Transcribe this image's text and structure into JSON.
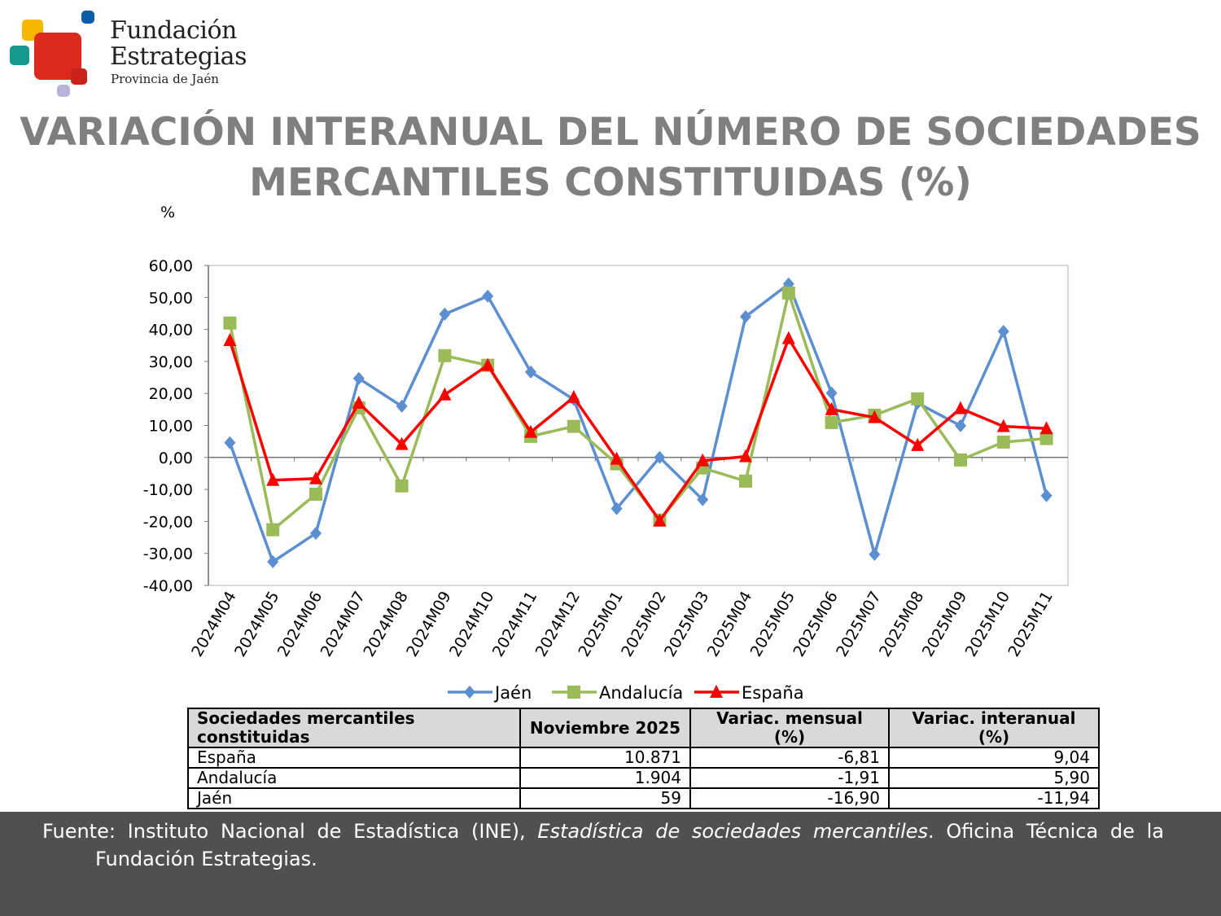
{
  "logo": {
    "line1": "Fundación",
    "line2": "Estrategias",
    "line3": "Provincia de Jaén"
  },
  "title_line1": "VARIACIÓN INTERANUAL DEL NÚMERO DE SOCIEDADES",
  "title_line2": "MERCANTILES CONSTITUIDAS (%)",
  "chart_data": {
    "type": "line",
    "ylabel": "%",
    "ylim": [
      -40,
      60
    ],
    "yticks": [
      "60,00",
      "50,00",
      "40,00",
      "30,00",
      "20,00",
      "10,00",
      "0,00",
      "-10,00",
      "-20,00",
      "-30,00",
      "-40,00"
    ],
    "categories": [
      "2024M04",
      "2024M05",
      "2024M06",
      "2024M07",
      "2024M08",
      "2024M09",
      "2024M10",
      "2024M11",
      "2024M12",
      "2025M01",
      "2025M02",
      "2025M03",
      "2025M04",
      "2025M05",
      "2025M06",
      "2025M07",
      "2025M08",
      "2025M09",
      "2025M10",
      "2025M11"
    ],
    "legend": "bottom",
    "series": [
      {
        "name": "Jaén",
        "color": "#5b8fd1",
        "marker": "diamond",
        "values": [
          4.6,
          -32.6,
          -23.7,
          24.7,
          16.0,
          44.8,
          50.4,
          26.7,
          18.1,
          -16.0,
          0.0,
          -13.2,
          44.0,
          54.2,
          20.1,
          -30.3,
          17.0,
          9.9,
          39.4,
          -11.94
        ]
      },
      {
        "name": "Andalucía",
        "color": "#9bbb59",
        "marker": "square",
        "values": [
          42.0,
          -22.6,
          -11.5,
          15.5,
          -8.9,
          31.8,
          28.8,
          6.6,
          9.7,
          -2.0,
          -19.6,
          -3.3,
          -7.4,
          51.4,
          10.9,
          13.2,
          18.3,
          -0.8,
          4.8,
          5.9
        ]
      },
      {
        "name": "España",
        "color": "#ff0000",
        "marker": "triangle",
        "values": [
          36.6,
          -7.1,
          -6.6,
          17.0,
          4.1,
          19.6,
          28.8,
          7.9,
          18.8,
          -0.5,
          -19.8,
          -1.0,
          0.3,
          37.2,
          15.0,
          12.5,
          3.8,
          15.3,
          9.7,
          9.04
        ]
      }
    ]
  },
  "table": {
    "headers": [
      "Sociedades mercantiles constituidas",
      "Noviembre 2025",
      "Variac. mensual (%)",
      "Variac. interanual (%)"
    ],
    "rows": [
      [
        "España",
        "10.871",
        "-6,81",
        "9,04"
      ],
      [
        "Andalucía",
        "1.904",
        "-1,91",
        "5,90"
      ],
      [
        "Jaén",
        "59",
        "-16,90",
        "-11,94"
      ]
    ]
  },
  "footer": {
    "prefix": "Fuente: Instituto Nacional de Estadística (INE),",
    "italic": "Estadística de sociedades mercantiles",
    "suffix": ". Oficina Técnica de la",
    "line2": "Fundación Estrategias."
  }
}
